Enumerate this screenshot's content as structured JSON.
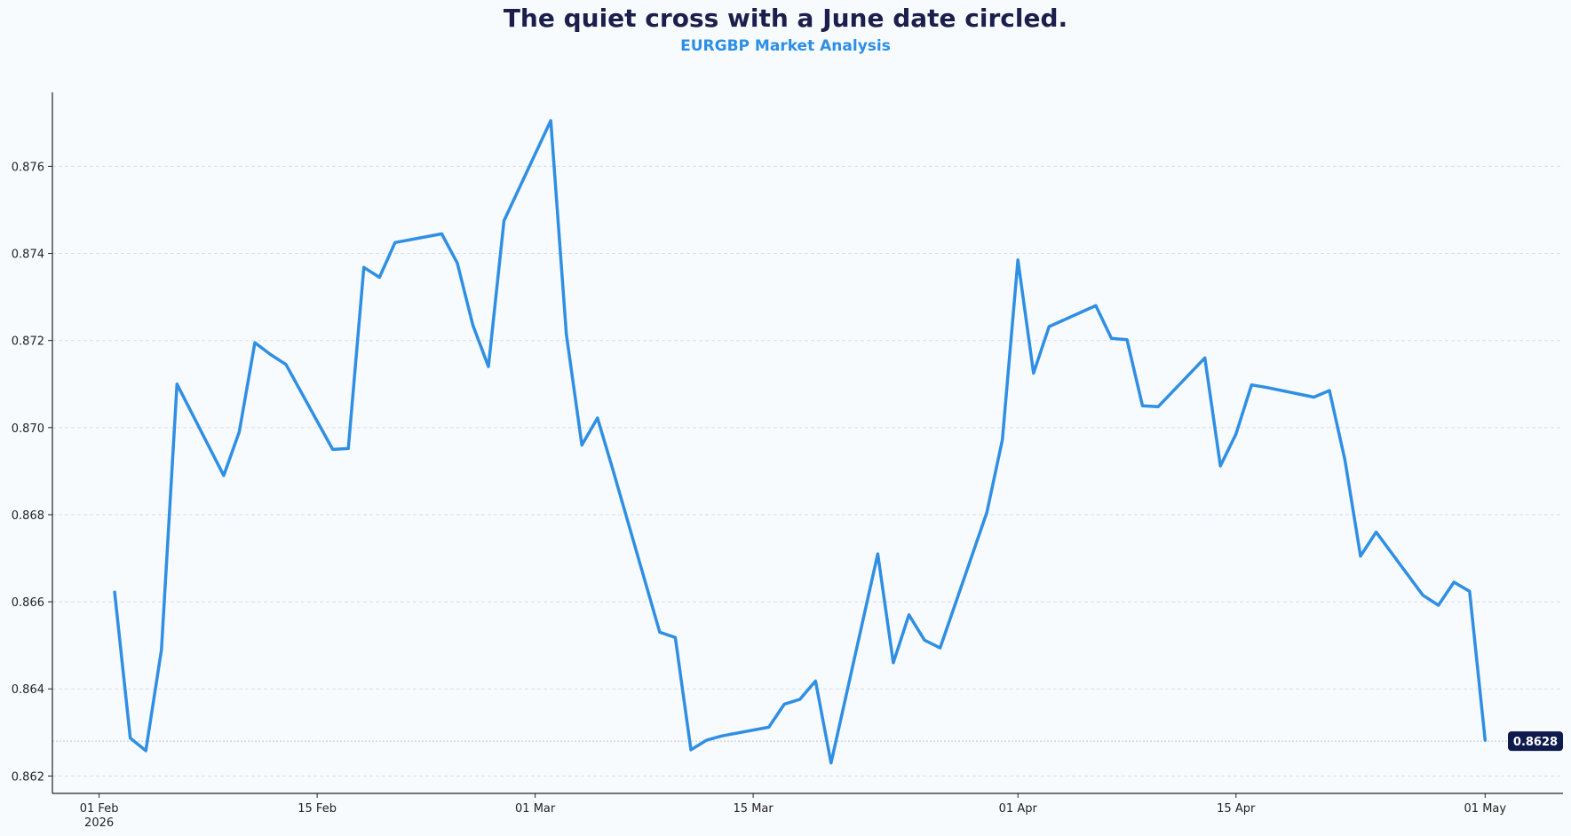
{
  "title": "The quiet cross with a June date circled.",
  "subtitle": "EURGBP Market Analysis",
  "last_value_label": "0.8628",
  "colors": {
    "line": "#2f8fe3",
    "title": "#1c1f4b",
    "subtitle": "#2b8fe5",
    "badge": "#0f1a4d",
    "grid": "#d5dde6"
  },
  "chart_data": {
    "type": "line",
    "title": "The quiet cross with a June date circled.",
    "subtitle": "EURGBP Market Analysis",
    "xlabel": "",
    "ylabel": "",
    "x_range": [
      "2026-01-29",
      "2026-05-06"
    ],
    "ylim": [
      0.8616,
      0.8777
    ],
    "y_ticks": [
      0.862,
      0.864,
      0.866,
      0.868,
      0.87,
      0.872,
      0.874,
      0.876
    ],
    "y_tick_labels": [
      "0.862",
      "0.864",
      "0.866",
      "0.868",
      "0.870",
      "0.872",
      "0.874",
      "0.876"
    ],
    "x_ticks": [
      {
        "date": "2026-02-01",
        "label": "01 Feb",
        "sublabel": "2026"
      },
      {
        "date": "2026-02-15",
        "label": "15 Feb",
        "sublabel": ""
      },
      {
        "date": "2026-03-01",
        "label": "01 Mar",
        "sublabel": ""
      },
      {
        "date": "2026-03-15",
        "label": "15 Mar",
        "sublabel": ""
      },
      {
        "date": "2026-04-01",
        "label": "01 Apr",
        "sublabel": ""
      },
      {
        "date": "2026-04-15",
        "label": "15 Apr",
        "sublabel": ""
      },
      {
        "date": "2026-05-01",
        "label": "01 May",
        "sublabel": ""
      }
    ],
    "grid": "horizontal-dashed",
    "reference_line": 0.8628,
    "series": [
      {
        "x": [
          "2026-02-02",
          "2026-02-03",
          "2026-02-04",
          "2026-02-05",
          "2026-02-06",
          "2026-02-09",
          "2026-02-10",
          "2026-02-11",
          "2026-02-12",
          "2026-02-13",
          "2026-02-16",
          "2026-02-17",
          "2026-02-18",
          "2026-02-19",
          "2026-02-20",
          "2026-02-23",
          "2026-02-24",
          "2026-02-25",
          "2026-02-26",
          "2026-02-27",
          "2026-03-02",
          "2026-03-03",
          "2026-03-04",
          "2026-03-05",
          "2026-03-06",
          "2026-03-09",
          "2026-03-10",
          "2026-03-11",
          "2026-03-12",
          "2026-03-13",
          "2026-03-16",
          "2026-03-17",
          "2026-03-18",
          "2026-03-19",
          "2026-03-20",
          "2026-03-23",
          "2026-03-24",
          "2026-03-25",
          "2026-03-26",
          "2026-03-27",
          "2026-03-30",
          "2026-03-31",
          "2026-04-01",
          "2026-04-02",
          "2026-04-03",
          "2026-04-06",
          "2026-04-07",
          "2026-04-08",
          "2026-04-09",
          "2026-04-10",
          "2026-04-13",
          "2026-04-14",
          "2026-04-15",
          "2026-04-16",
          "2026-04-17",
          "2026-04-20",
          "2026-04-21",
          "2026-04-22",
          "2026-04-23",
          "2026-04-24",
          "2026-04-27",
          "2026-04-28",
          "2026-04-29",
          "2026-04-30",
          "2026-05-01"
        ],
        "y": [
          0.86622,
          0.86287,
          0.86258,
          0.8649,
          0.871,
          0.8689,
          0.8699,
          0.87195,
          0.87168,
          0.87145,
          0.8695,
          0.86952,
          0.87368,
          0.87345,
          0.87425,
          0.87445,
          0.87378,
          0.87235,
          0.8714,
          0.87475,
          0.87705,
          0.87215,
          0.8696,
          0.87022,
          0.86902,
          0.8653,
          0.86518,
          0.8626,
          0.86282,
          0.86292,
          0.86312,
          0.86365,
          0.86376,
          0.86418,
          0.8623,
          0.8671,
          0.8646,
          0.8657,
          0.86512,
          0.86494,
          0.86805,
          0.86972,
          0.87385,
          0.87125,
          0.87232,
          0.8728,
          0.87205,
          0.87202,
          0.8705,
          0.87048,
          0.8716,
          0.86912,
          0.86985,
          0.87098,
          0.87092,
          0.8707,
          0.87085,
          0.86925,
          0.86705,
          0.8676,
          0.86615,
          0.86592,
          0.86645,
          0.86624,
          0.86282
        ]
      }
    ]
  }
}
